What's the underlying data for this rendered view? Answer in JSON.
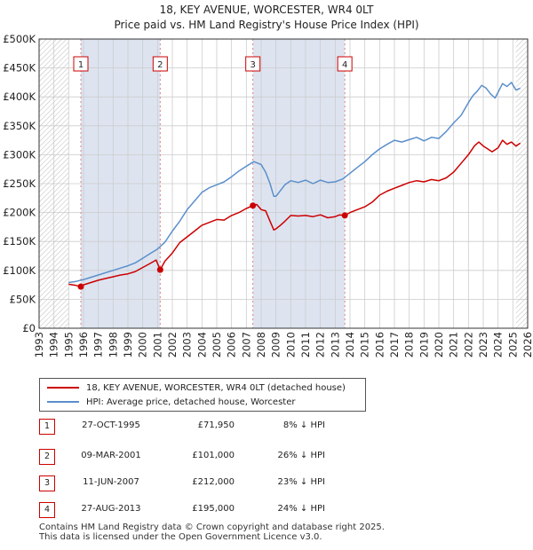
{
  "header": {
    "title_line1": "18, KEY AVENUE, WORCESTER, WR4 0LT",
    "title_line2": "Price paid vs. HM Land Registry's House Price Index (HPI)"
  },
  "colors": {
    "property_line": "#cc0000",
    "hpi_line": "#5b8fcb",
    "shade": "#dde4f0",
    "hatch": "#bbbbbb",
    "grid": "#cccccc",
    "marker_dash": "#e08080",
    "badge_border": "#cc0000"
  },
  "chart_data": {
    "type": "line",
    "title": "18, KEY AVENUE, WORCESTER, WR4 0LT - Price paid vs. HM Land Registry's House Price Index (HPI)",
    "xlim": [
      1993,
      2026
    ],
    "ylim": [
      0,
      500000
    ],
    "y_ticks": [
      {
        "value": 0,
        "label": "£0"
      },
      {
        "value": 50000,
        "label": "£50K"
      },
      {
        "value": 100000,
        "label": "£100K"
      },
      {
        "value": 150000,
        "label": "£150K"
      },
      {
        "value": 200000,
        "label": "£200K"
      },
      {
        "value": 250000,
        "label": "£250K"
      },
      {
        "value": 300000,
        "label": "£300K"
      },
      {
        "value": 350000,
        "label": "£350K"
      },
      {
        "value": 400000,
        "label": "£400K"
      },
      {
        "value": 450000,
        "label": "£450K"
      },
      {
        "value": 500000,
        "label": "£500K"
      }
    ],
    "x_ticks": [
      "1993",
      "1994",
      "1995",
      "1996",
      "1997",
      "1998",
      "1999",
      "2000",
      "2001",
      "2002",
      "2003",
      "2004",
      "2005",
      "2006",
      "2007",
      "2008",
      "2009",
      "2010",
      "2011",
      "2012",
      "2013",
      "2014",
      "2015",
      "2016",
      "2017",
      "2018",
      "2019",
      "2020",
      "2021",
      "2022",
      "2023",
      "2024",
      "2025",
      "2026"
    ],
    "hatched_ranges": [
      [
        1993,
        1995
      ],
      [
        2025.2,
        2026
      ]
    ],
    "series": [
      {
        "name": "18, KEY AVENUE, WORCESTER, WR4 0LT (detached house)",
        "color": "#cc0000",
        "x": [
          1995.0,
          1995.5,
          1995.82,
          1996.0,
          1996.5,
          1997.0,
          1997.5,
          1998.0,
          1998.5,
          1999.0,
          1999.5,
          2000.0,
          2000.5,
          2000.9,
          2001.18,
          2001.5,
          2002.0,
          2002.5,
          2003.0,
          2003.5,
          2004.0,
          2004.5,
          2005.0,
          2005.5,
          2006.0,
          2006.5,
          2007.0,
          2007.44,
          2007.7,
          2008.0,
          2008.3,
          2008.6,
          2008.85,
          2009.0,
          2009.3,
          2009.6,
          2010.0,
          2010.5,
          2011.0,
          2011.5,
          2012.0,
          2012.5,
          2013.0,
          2013.3,
          2013.65,
          2014.0,
          2014.5,
          2015.0,
          2015.5,
          2016.0,
          2016.5,
          2017.0,
          2017.5,
          2018.0,
          2018.5,
          2019.0,
          2019.5,
          2020.0,
          2020.5,
          2021.0,
          2021.5,
          2022.0,
          2022.4,
          2022.7,
          2023.0,
          2023.3,
          2023.6,
          2024.0,
          2024.3,
          2024.6,
          2024.9,
          2025.2,
          2025.5
        ],
        "values": [
          76000,
          74000,
          71950,
          75000,
          79000,
          83000,
          86000,
          89000,
          92000,
          94000,
          98000,
          105000,
          112000,
          118000,
          101000,
          116000,
          130000,
          148000,
          158000,
          168000,
          178000,
          183000,
          188000,
          187000,
          195000,
          200000,
          207000,
          212000,
          214000,
          205000,
          203000,
          185000,
          170000,
          172000,
          178000,
          185000,
          195000,
          194000,
          195000,
          193000,
          196000,
          191000,
          193000,
          196000,
          195000,
          200000,
          205000,
          210000,
          218000,
          230000,
          237000,
          242000,
          247000,
          252000,
          255000,
          253000,
          257000,
          255000,
          260000,
          270000,
          285000,
          300000,
          315000,
          322000,
          315000,
          310000,
          305000,
          312000,
          325000,
          318000,
          322000,
          315000,
          320000
        ]
      },
      {
        "name": "HPI: Average price, detached house, Worcester",
        "color": "#5b8fcb",
        "x": [
          1995.0,
          1995.5,
          1996.0,
          1996.5,
          1997.0,
          1997.5,
          1998.0,
          1998.5,
          1999.0,
          1999.5,
          2000.0,
          2000.5,
          2001.0,
          2001.5,
          2002.0,
          2002.5,
          2003.0,
          2003.5,
          2004.0,
          2004.5,
          2005.0,
          2005.5,
          2006.0,
          2006.5,
          2007.0,
          2007.5,
          2008.0,
          2008.3,
          2008.6,
          2008.85,
          2009.0,
          2009.3,
          2009.6,
          2010.0,
          2010.5,
          2011.0,
          2011.5,
          2012.0,
          2012.5,
          2013.0,
          2013.5,
          2014.0,
          2014.5,
          2015.0,
          2015.5,
          2016.0,
          2016.5,
          2017.0,
          2017.5,
          2018.0,
          2018.5,
          2019.0,
          2019.5,
          2020.0,
          2020.5,
          2021.0,
          2021.5,
          2022.0,
          2022.3,
          2022.6,
          2022.9,
          2023.2,
          2023.5,
          2023.8,
          2024.0,
          2024.3,
          2024.6,
          2024.9,
          2025.2,
          2025.5
        ],
        "values": [
          79000,
          81000,
          84000,
          88000,
          92000,
          96000,
          100000,
          104000,
          108000,
          113000,
          121000,
          129000,
          137000,
          149000,
          168000,
          185000,
          205000,
          220000,
          235000,
          243000,
          248000,
          253000,
          262000,
          272000,
          280000,
          288000,
          283000,
          270000,
          250000,
          228000,
          228000,
          238000,
          248000,
          255000,
          252000,
          256000,
          250000,
          256000,
          252000,
          253000,
          258000,
          268000,
          278000,
          288000,
          300000,
          310000,
          318000,
          325000,
          322000,
          326000,
          330000,
          324000,
          330000,
          328000,
          340000,
          355000,
          368000,
          390000,
          402000,
          410000,
          420000,
          415000,
          405000,
          398000,
          408000,
          423000,
          418000,
          425000,
          412000,
          415000
        ]
      }
    ],
    "sales": [
      {
        "num": "1",
        "x": 1995.82,
        "value": 71950,
        "date": "27-OCT-1995",
        "price": "£71,950",
        "hpi": "8% ↓ HPI"
      },
      {
        "num": "2",
        "x": 2001.18,
        "value": 101000,
        "date": "09-MAR-2001",
        "price": "£101,000",
        "hpi": "26% ↓ HPI"
      },
      {
        "num": "3",
        "x": 2007.44,
        "value": 212000,
        "date": "11-JUN-2007",
        "price": "£212,000",
        "hpi": "23% ↓ HPI"
      },
      {
        "num": "4",
        "x": 2013.65,
        "value": 195000,
        "date": "27-AUG-2013",
        "price": "£195,000",
        "hpi": "24% ↓ HPI"
      }
    ],
    "shaded_ranges": [
      [
        1995.82,
        2001.18
      ],
      [
        2007.44,
        2013.65
      ]
    ]
  },
  "legend": {
    "property_label": "18, KEY AVENUE, WORCESTER, WR4 0LT (detached house)",
    "hpi_label": "HPI: Average price, detached house, Worcester"
  },
  "footer": {
    "line1": "Contains HM Land Registry data © Crown copyright and database right 2025.",
    "line2": "This data is licensed under the Open Government Licence v3.0."
  }
}
